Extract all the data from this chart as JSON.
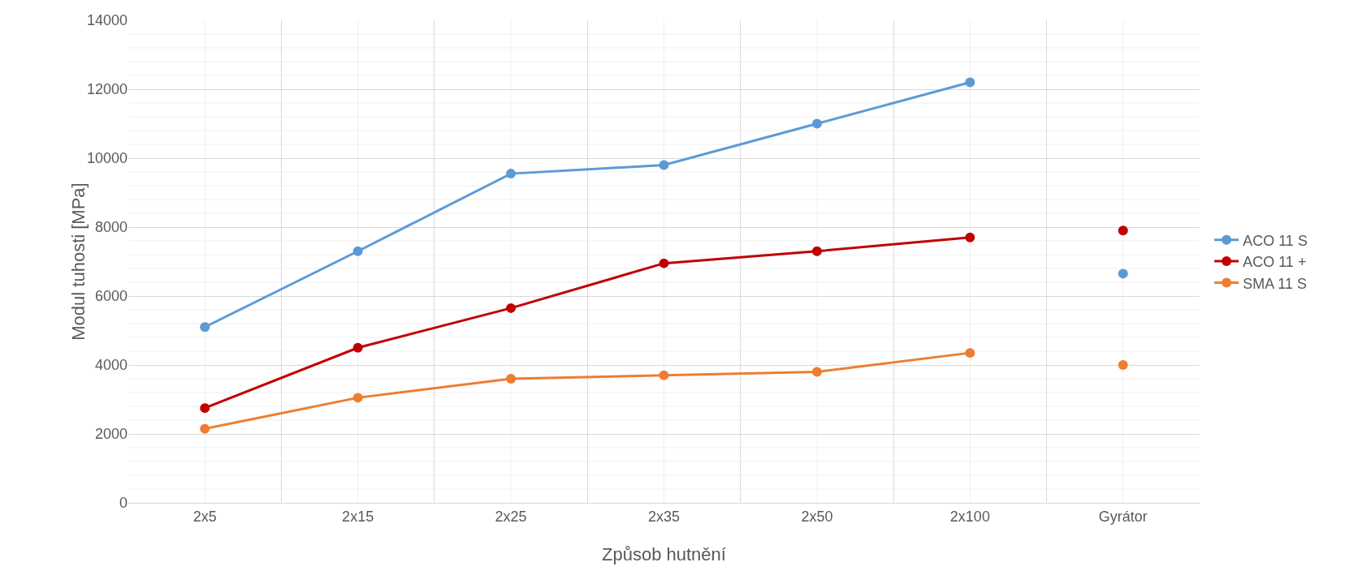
{
  "chart_data": {
    "type": "line",
    "xlabel": "Způsob hutnění",
    "ylabel": "Modul tuhosti [MPa]",
    "categories": [
      "2x5",
      "2x15",
      "2x25",
      "2x35",
      "2x50",
      "2x100",
      "Gyrátor"
    ],
    "series": [
      {
        "name": "ACO 11 S",
        "color": "#5b9bd5",
        "values": [
          5100,
          7300,
          9550,
          9800,
          11000,
          12200,
          null
        ]
      },
      {
        "name": "ACO 11 +",
        "color": "#c00000",
        "values": [
          2750,
          4500,
          5650,
          6950,
          7300,
          7700,
          null
        ]
      },
      {
        "name": "SMA 11 S",
        "color": "#ed7d31",
        "values": [
          2150,
          3050,
          3600,
          3700,
          3800,
          4350,
          null
        ]
      },
      {
        "type": "scatter",
        "color": "#5b9bd5",
        "values": [
          null,
          null,
          null,
          null,
          null,
          null,
          6650
        ]
      },
      {
        "type": "scatter",
        "color": "#c00000",
        "values": [
          null,
          null,
          null,
          null,
          null,
          null,
          7900
        ]
      },
      {
        "type": "scatter",
        "color": "#ed7d31",
        "values": [
          null,
          null,
          null,
          null,
          null,
          null,
          4000
        ]
      }
    ],
    "ylim": [
      0,
      14000
    ],
    "yticks": [
      0,
      2000,
      4000,
      6000,
      8000,
      10000,
      12000,
      14000
    ],
    "grid": true,
    "legend": "right",
    "marker": "circle",
    "line_style": "solid"
  }
}
